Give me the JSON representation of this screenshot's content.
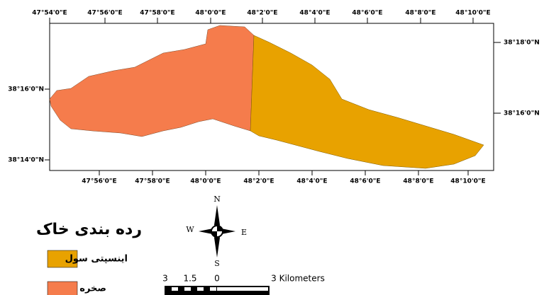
{
  "map": {
    "top_labels": [
      "47°54'0\"E",
      "47°56'0\"E",
      "47°58'0\"E",
      "48°0'0\"E",
      "48°2'0\"E",
      "48°4'0\"E",
      "48°6'0\"E",
      "48°8'0\"E",
      "48°10'0\"E"
    ],
    "bottom_labels": [
      "47°56'0\"E",
      "47°58'0\"E",
      "48°0'0\"E",
      "48°2'0\"E",
      "48°4'0\"E",
      "48°6'0\"E",
      "48°8'0\"E",
      "48°10'0\"E"
    ],
    "left_labels": [
      "38°16'0\"N",
      "38°14'0\"N"
    ],
    "right_labels": [
      "38°18'0\"N",
      "38°16'0\"N"
    ]
  },
  "legend": {
    "title": "رده بندی خاک",
    "items": [
      {
        "label": "اینسپتی سول",
        "color": "#e8a200"
      },
      {
        "label": "صخره",
        "color": "#f57c4c"
      }
    ]
  },
  "compass": {
    "north": "N",
    "west": "W",
    "east": "E",
    "south": "S"
  },
  "scale": {
    "labels": [
      "3",
      "1.5",
      "0",
      "3 Kilometers"
    ]
  }
}
